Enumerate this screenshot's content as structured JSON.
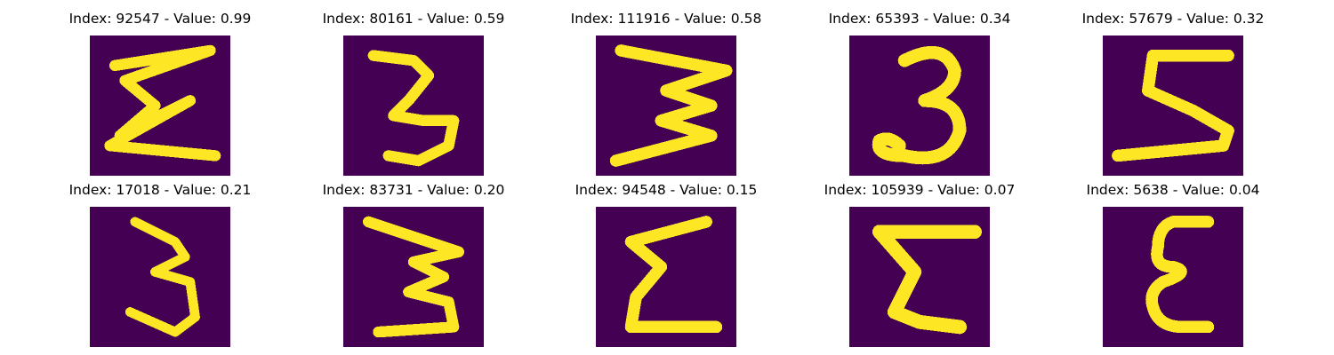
{
  "palette": {
    "background": "#440154",
    "low": "#31688e",
    "mid": "#35b779",
    "high": "#fde725"
  },
  "samples": [
    {
      "title": "Index: 92547 - Value: 0.99",
      "glyph": "sigma-left-tall"
    },
    {
      "title": "Index: 80161 - Value: 0.59",
      "glyph": "three-narrow"
    },
    {
      "title": "Index: 111916 - Value: 0.58",
      "glyph": "three-wide-slanted"
    },
    {
      "title": "Index: 65393 - Value: 0.34",
      "glyph": "three-round"
    },
    {
      "title": "Index: 57679 - Value: 0.32",
      "glyph": "five-like"
    },
    {
      "title": "Index: 17018 - Value: 0.21",
      "glyph": "three-thin"
    },
    {
      "title": "Index: 83731 - Value: 0.20",
      "glyph": "three-zigzag"
    },
    {
      "title": "Index: 94548 - Value: 0.15",
      "glyph": "sigma-compact"
    },
    {
      "title": "Index: 105939 - Value: 0.07",
      "glyph": "sigma-bold"
    },
    {
      "title": "Index: 5638 - Value: 0.04",
      "glyph": "epsilon"
    }
  ]
}
